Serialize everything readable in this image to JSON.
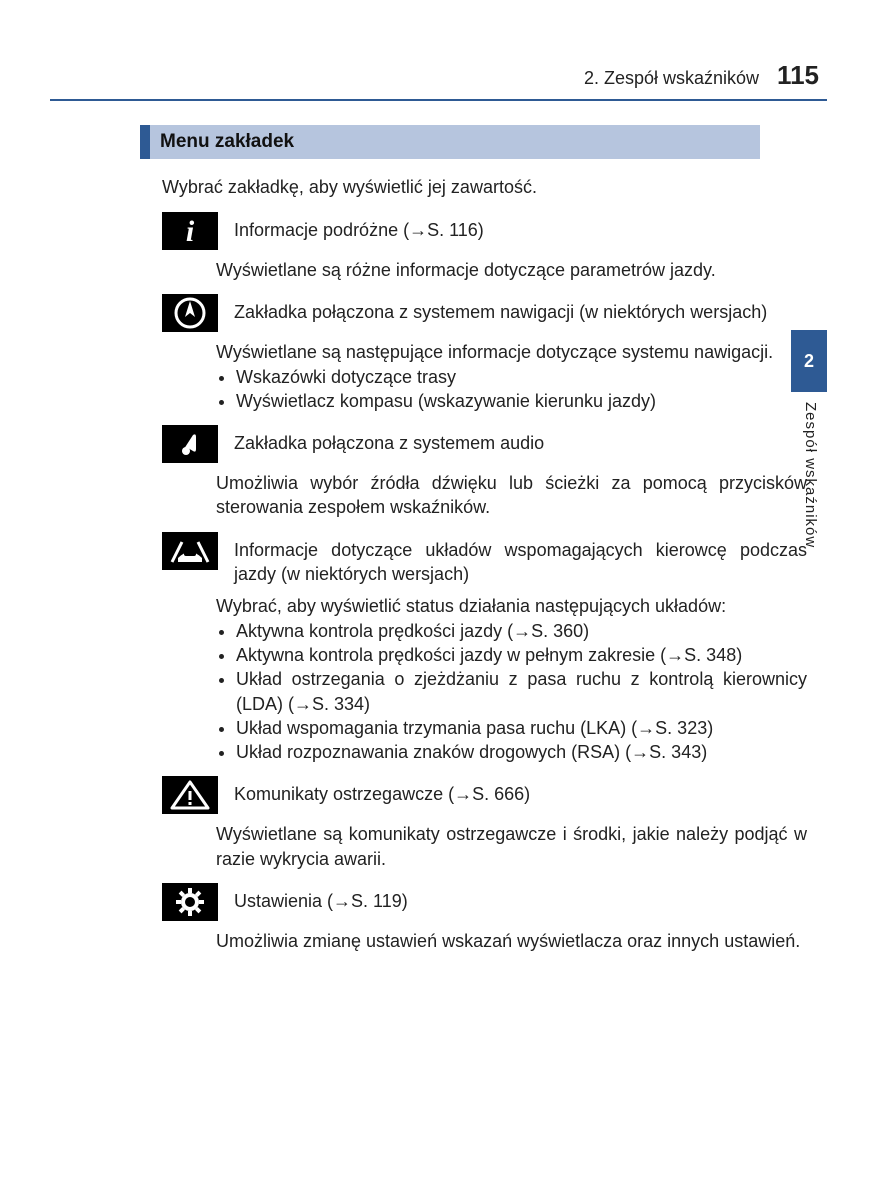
{
  "header": {
    "chapter": "2. Zespół wskaźników",
    "page_number": "115"
  },
  "side_tab": {
    "number": "2",
    "label": "Zespół wskaźników"
  },
  "section_title": "Menu zakładek",
  "intro": "Wybrać zakładkę, aby wyświetlić jej zawartość.",
  "items": [
    {
      "icon": "info",
      "title": "Informacje podróżne (→S. 116)",
      "desc": "Wyświetlane są różne informacje dotyczące parametrów jazdy.",
      "bullets": []
    },
    {
      "icon": "nav",
      "title": "Zakładka połączona z systemem nawigacji (w niektórych wersjach)",
      "desc": "Wyświetlane są następujące informacje dotyczące systemu nawigacji.",
      "bullets": [
        "Wskazówki dotyczące trasy",
        "Wyświetlacz kompasu (wskazywanie kierunku jazdy)"
      ]
    },
    {
      "icon": "audio",
      "title": "Zakładka połączona z systemem audio",
      "desc": "Umożliwia wybór źródła dźwięku lub ścieżki za pomocą przycisków sterowania zespołem wskaźników.",
      "bullets": []
    },
    {
      "icon": "car",
      "title": "Informacje dotyczące układów wspomagających kierowcę podczas jazdy (w niektórych wersjach)",
      "desc": "Wybrać, aby wyświetlić status działania następujących układów:",
      "bullets": [
        "Aktywna kontrola prędkości jazdy (→S. 360)",
        "Aktywna kontrola prędkości jazdy w pełnym zakresie (→S. 348)",
        "Układ ostrzegania o zjeżdżaniu z pasa ruchu z kontrolą kierownicy (LDA) (→S. 334)",
        "Układ wspomagania trzymania pasa ruchu (LKA) (→S. 323)",
        "Układ rozpoznawania znaków drogowych (RSA) (→S. 343)"
      ]
    },
    {
      "icon": "warning",
      "title": "Komunikaty ostrzegawcze (→S. 666)",
      "desc": "Wyświetlane są komunikaty ostrzegawcze i środki, jakie należy podjąć w razie wykrycia awarii.",
      "bullets": []
    },
    {
      "icon": "gear",
      "title": "Ustawienia (→S. 119)",
      "desc": "Umożliwia zmianę ustawień wskazań wyświetlacza oraz innych ustawień.",
      "bullets": []
    }
  ],
  "colors": {
    "accent": "#2e5a94",
    "section_bg": "#b6c5de",
    "icon_bg": "#000000",
    "text": "#222222",
    "bg": "#ffffff"
  }
}
